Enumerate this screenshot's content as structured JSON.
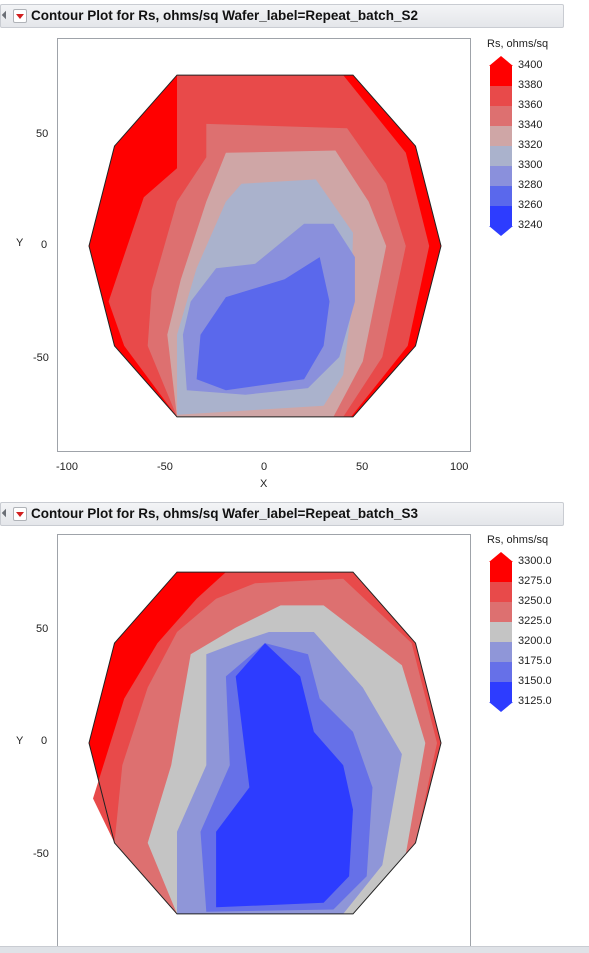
{
  "panels": [
    {
      "title": "Contour Plot for Rs, ohms/sq Wafer_label=Repeat_batch_S2",
      "xlabel": "X",
      "ylabel": "Y",
      "xticks": [
        "-100",
        "-50",
        "0",
        "50",
        "100"
      ],
      "yticks": [
        "50",
        "0",
        "-50"
      ],
      "legend_title": "Rs, ohms/sq",
      "legend_levels": [
        "3400",
        "3380",
        "3360",
        "3340",
        "3320",
        "3300",
        "3280",
        "3260",
        "3240"
      ],
      "colors": [
        "#ff0000",
        "#e84a4a",
        "#dd7070",
        "#cfa6a6",
        "#aab2cc",
        "#8a90dc",
        "#5a68ec",
        "#2d3cff"
      ]
    },
    {
      "title": "Contour Plot for Rs, ohms/sq Wafer_label=Repeat_batch_S3",
      "xlabel": "",
      "ylabel": "Y",
      "xticks": [],
      "yticks": [
        "50",
        "0",
        "-50"
      ],
      "legend_title": "Rs, ohms/sq",
      "legend_levels": [
        "3300.0",
        "3275.0",
        "3250.0",
        "3225.0",
        "3200.0",
        "3175.0",
        "3150.0",
        "3125.0"
      ],
      "colors": [
        "#ff0000",
        "#e84a4a",
        "#dd7070",
        "#c4c4c4",
        "#8f96d8",
        "#6670e8",
        "#2d3cff"
      ]
    }
  ],
  "chart_data": [
    {
      "type": "contour",
      "title": "Contour Plot for Rs, ohms/sq Wafer_label=Repeat_batch_S2",
      "xlabel": "X",
      "ylabel": "Y",
      "xlim": [
        -100,
        105
      ],
      "ylim": [
        -78,
        78
      ],
      "levels": [
        3240,
        3260,
        3280,
        3300,
        3320,
        3340,
        3360,
        3380,
        3400
      ],
      "level_colors": [
        "#2d3cff",
        "#5a68ec",
        "#8a90dc",
        "#aab2cc",
        "#cfa6a6",
        "#dd7070",
        "#e84a4a",
        "#ff0000"
      ],
      "wafer_outline": [
        [
          -45,
          77
        ],
        [
          45,
          77
        ],
        [
          77,
          45
        ],
        [
          90,
          0
        ],
        [
          77,
          -45
        ],
        [
          45,
          -77
        ],
        [
          -45,
          -77
        ],
        [
          -77,
          -45
        ],
        [
          -90,
          0
        ],
        [
          -77,
          45
        ]
      ],
      "bands": [
        {
          "level": 3260,
          "points": [
            [
              -45,
              77
            ],
            [
              45,
              77
            ],
            [
              77,
              45
            ],
            [
              90,
              0
            ],
            [
              77,
              -45
            ],
            [
              45,
              -77
            ],
            [
              -45,
              -77
            ],
            [
              -77,
              -45
            ],
            [
              -90,
              0
            ],
            [
              -77,
              45
            ]
          ]
        },
        {
          "level": 3300,
          "points": [
            [
              -45,
              77
            ],
            [
              40,
              77
            ],
            [
              72,
              42
            ],
            [
              84,
              0
            ],
            [
              73,
              -45
            ],
            [
              44,
              -77
            ],
            [
              -45,
              -77
            ],
            [
              -72,
              -45
            ],
            [
              -80,
              -25
            ],
            [
              -62,
              22
            ],
            [
              -45,
              35
            ]
          ]
        },
        {
          "level": 3320,
          "points": [
            [
              -30,
              55
            ],
            [
              42,
              53
            ],
            [
              62,
              28
            ],
            [
              72,
              0
            ],
            [
              60,
              -50
            ],
            [
              40,
              -77
            ],
            [
              -45,
              -77
            ],
            [
              -60,
              -45
            ],
            [
              -58,
              -20
            ],
            [
              -45,
              20
            ],
            [
              -30,
              40
            ]
          ]
        },
        {
          "level": 3340,
          "points": [
            [
              -20,
              42
            ],
            [
              36,
              43
            ],
            [
              53,
              20
            ],
            [
              62,
              0
            ],
            [
              50,
              -52
            ],
            [
              35,
              -77
            ],
            [
              -45,
              -77
            ],
            [
              -50,
              -40
            ],
            [
              -43,
              -15
            ],
            [
              -30,
              20
            ]
          ]
        },
        {
          "level": 3360,
          "points": [
            [
              -12,
              28
            ],
            [
              26,
              30
            ],
            [
              45,
              6
            ],
            [
              44,
              -30
            ],
            [
              40,
              -58
            ],
            [
              30,
              -72
            ],
            [
              -45,
              -76
            ],
            [
              -45,
              -40
            ],
            [
              -35,
              -10
            ],
            [
              -20,
              20
            ]
          ]
        },
        {
          "level": 3380,
          "points": [
            [
              -25,
              -10
            ],
            [
              -5,
              -8
            ],
            [
              20,
              10
            ],
            [
              35,
              10
            ],
            [
              46,
              -5
            ],
            [
              46,
              -25
            ],
            [
              38,
              -50
            ],
            [
              22,
              -64
            ],
            [
              -10,
              -67
            ],
            [
              -40,
              -65
            ],
            [
              -42,
              -40
            ],
            [
              -38,
              -25
            ]
          ]
        },
        {
          "level": 3400,
          "points": [
            [
              -20,
              -23
            ],
            [
              10,
              -15
            ],
            [
              28,
              -5
            ],
            [
              33,
              -25
            ],
            [
              30,
              -45
            ],
            [
              20,
              -60
            ],
            [
              -20,
              -65
            ],
            [
              -35,
              -60
            ],
            [
              -33,
              -40
            ]
          ]
        }
      ]
    },
    {
      "type": "contour",
      "title": "Contour Plot for Rs, ohms/sq Wafer_label=Repeat_batch_S3",
      "xlabel": "",
      "ylabel": "Y",
      "ylim": [
        -78,
        78
      ],
      "levels": [
        3125.0,
        3150.0,
        3175.0,
        3200.0,
        3225.0,
        3250.0,
        3275.0,
        3300.0
      ],
      "level_colors": [
        "#2d3cff",
        "#6670e8",
        "#8f96d8",
        "#c4c4c4",
        "#dd7070",
        "#e84a4a",
        "#ff0000"
      ]
    }
  ]
}
